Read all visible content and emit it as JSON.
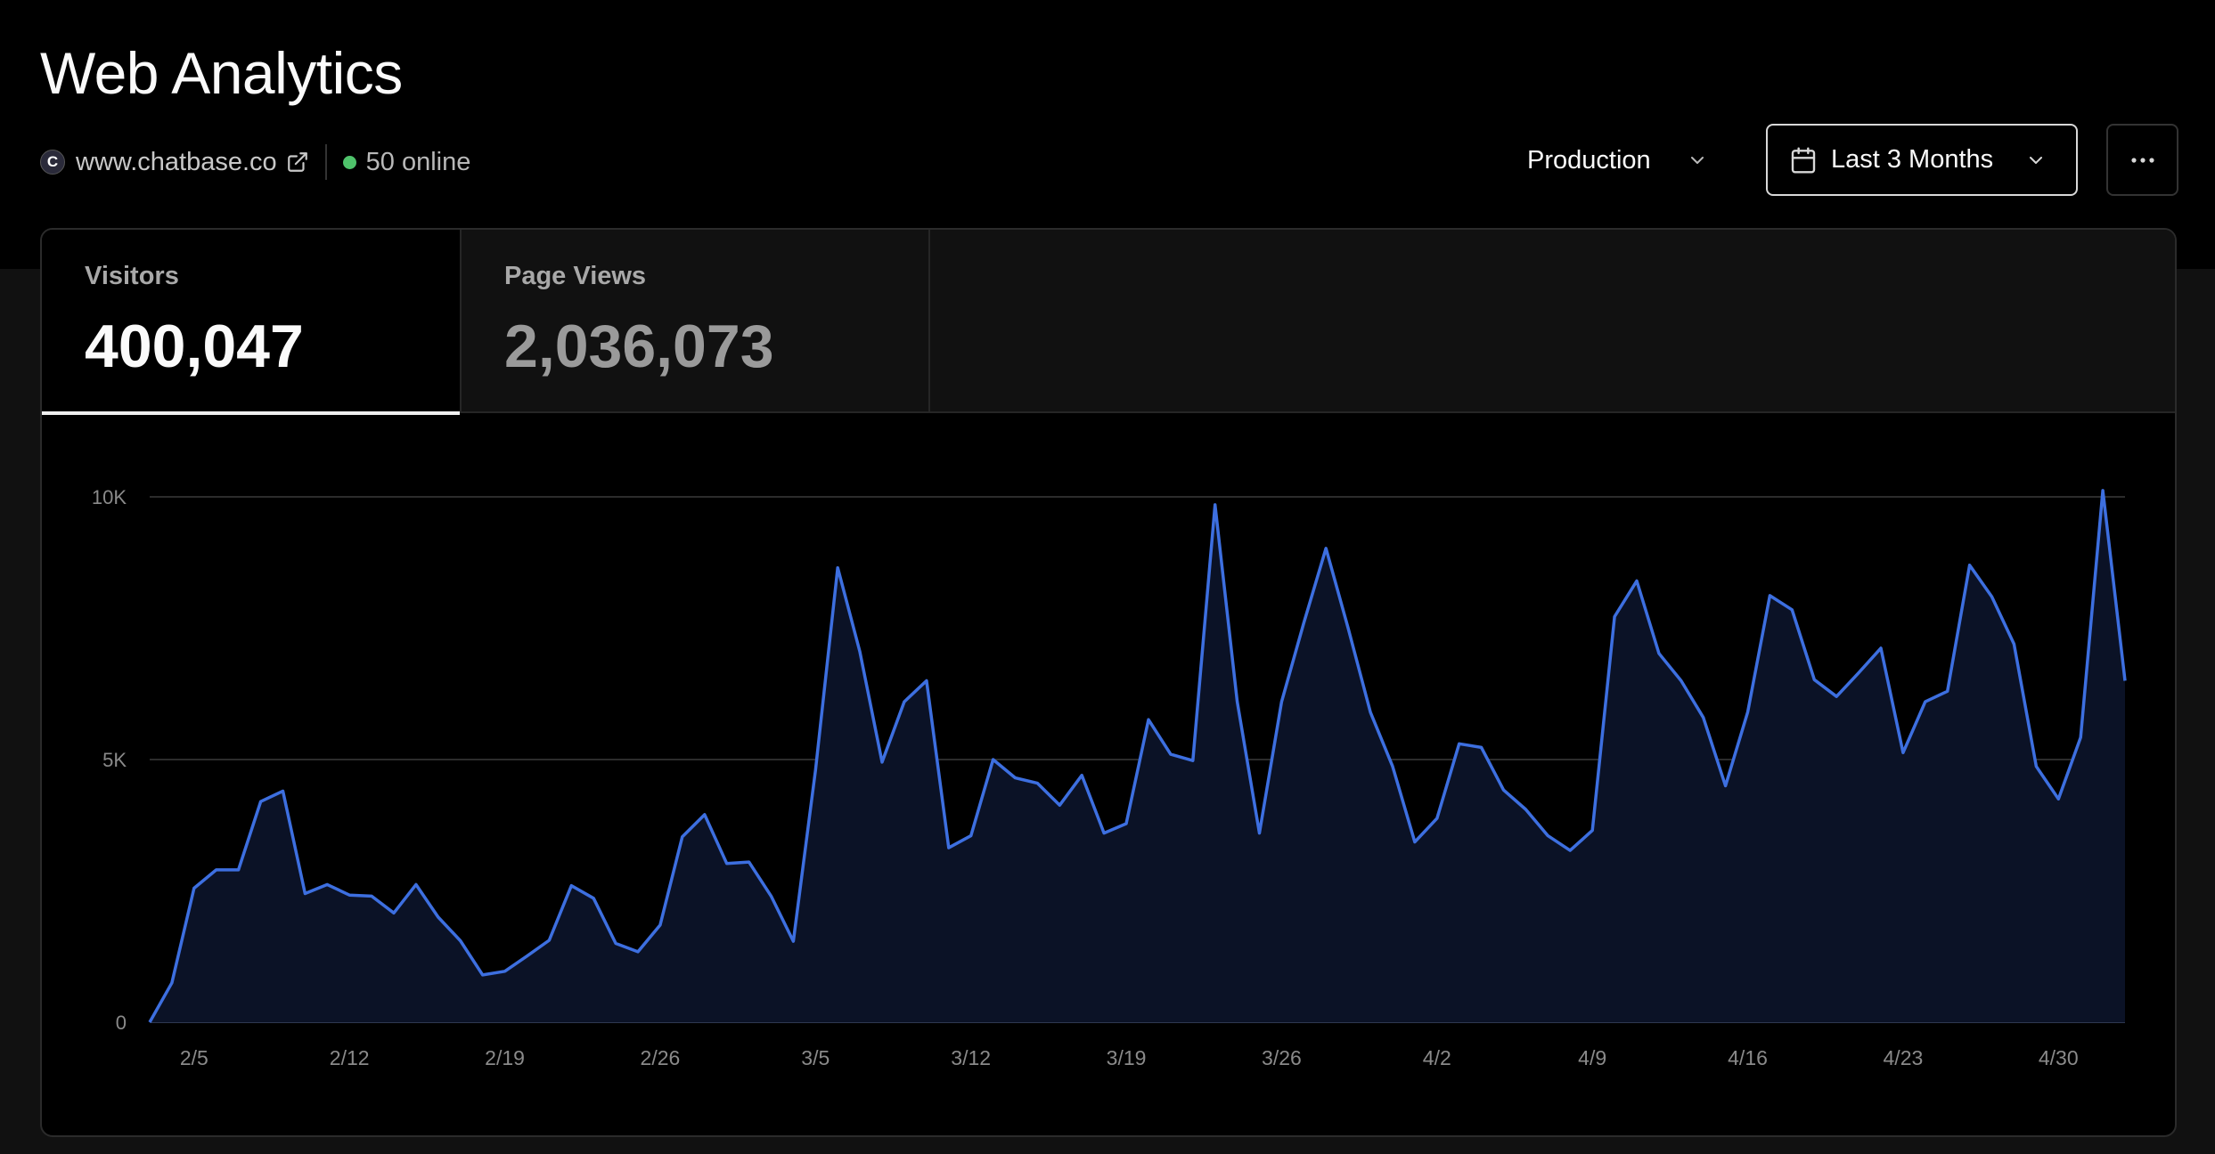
{
  "header": {
    "title": "Web Analytics",
    "site_initial": "C",
    "site_url": "www.chatbase.co",
    "online_text": "50 online"
  },
  "controls": {
    "environment": "Production",
    "date_range": "Last 3 Months",
    "more_label": "···"
  },
  "tabs": [
    {
      "label": "Visitors",
      "value": "400,047",
      "active": true
    },
    {
      "label": "Page Views",
      "value": "2,036,073",
      "active": false
    }
  ],
  "colors": {
    "line": "#3d6fe0",
    "fill": "#0b1226",
    "online": "#4fc36b",
    "grid": "#3a3a3a"
  },
  "chart_data": {
    "type": "area",
    "ylim": [
      0,
      10000
    ],
    "yticks": [
      {
        "value": 0,
        "label": "0"
      },
      {
        "value": 5000,
        "label": "5K"
      },
      {
        "value": 10000,
        "label": "10K"
      }
    ],
    "xticks": [
      "2/5",
      "2/12",
      "2/19",
      "2/26",
      "3/5",
      "3/12",
      "3/19",
      "3/26",
      "4/2",
      "4/9",
      "4/16",
      "4/23",
      "4/30"
    ],
    "xtick_index": [
      2,
      9,
      16,
      23,
      30,
      37,
      44,
      51,
      58,
      65,
      72,
      79,
      86
    ],
    "series": [
      {
        "values": [
          0,
          750,
          2550,
          2900,
          2900,
          4200,
          4400,
          2450,
          2620,
          2420,
          2400,
          2080,
          2620,
          2000,
          1550,
          900,
          970,
          1260,
          1560,
          2600,
          2360,
          1500,
          1340,
          1850,
          3530,
          3950,
          3020,
          3050,
          2400,
          1540,
          4800,
          8650,
          7050,
          4950,
          6100,
          6500,
          3320,
          3550,
          5000,
          4650,
          4550,
          4130,
          4700,
          3600,
          3780,
          5760,
          5100,
          4980,
          9850,
          6100,
          3600,
          6100,
          7600,
          9020,
          7500,
          5900,
          4870,
          3430,
          3880,
          5300,
          5230,
          4420,
          4050,
          3550,
          3270,
          3650,
          7720,
          8400,
          7020,
          6500,
          5800,
          4500,
          5900,
          8120,
          7850,
          6520,
          6200,
          6650,
          7120,
          5130,
          6100,
          6300,
          8700,
          8100,
          7200,
          4870,
          4250,
          5420,
          10120,
          6500
        ]
      }
    ]
  }
}
